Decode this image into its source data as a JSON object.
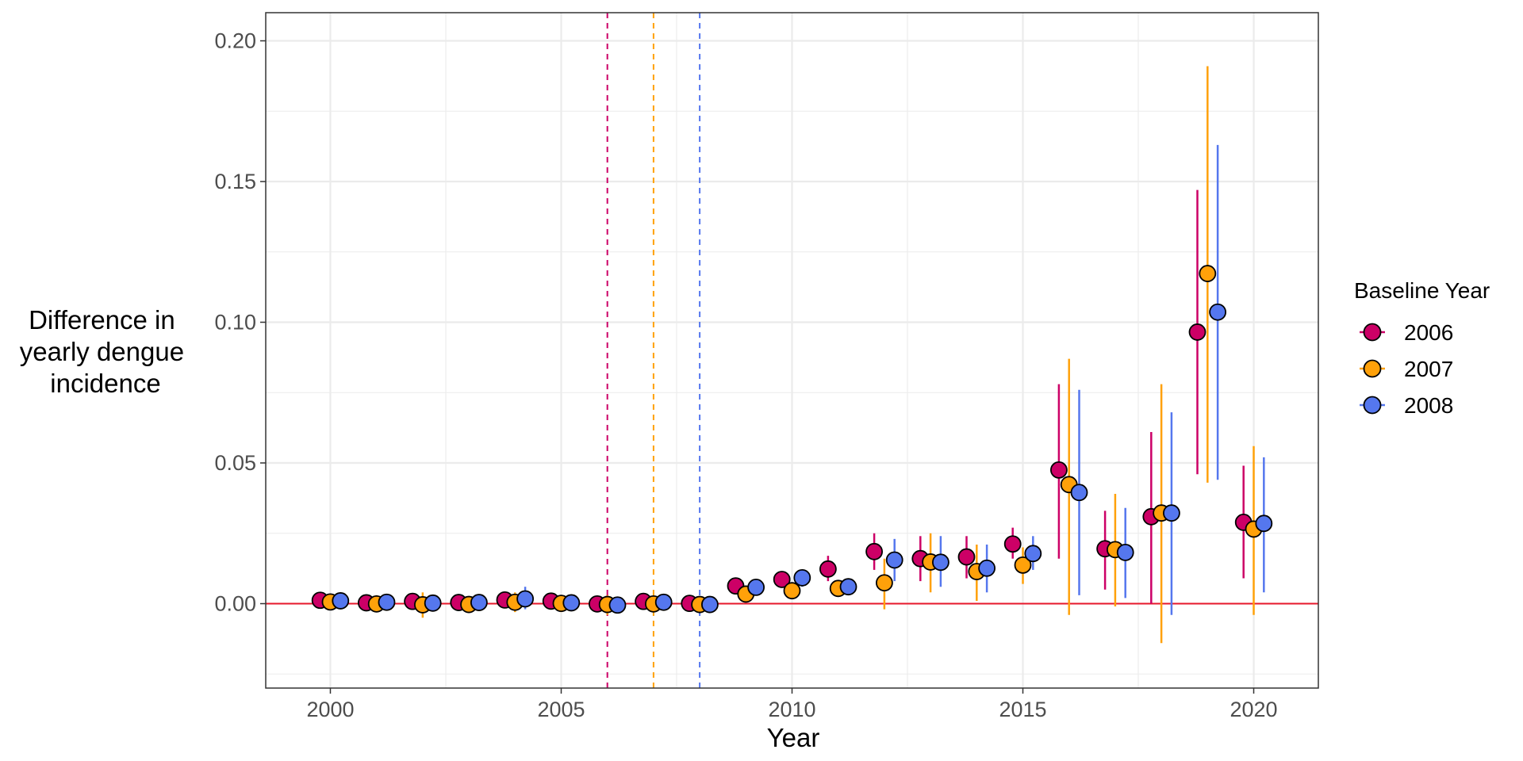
{
  "chart_data": {
    "type": "scatter",
    "title": "",
    "xlabel": "Year",
    "ylabel_lines": [
      "Difference in",
      "yearly dengue",
      "incidence"
    ],
    "xlim": [
      1998.6,
      2021.4
    ],
    "ylim": [
      -0.03,
      0.21
    ],
    "xticks": [
      2000,
      2005,
      2010,
      2015,
      2020
    ],
    "xtick_labels": [
      "2000",
      "2005",
      "2010",
      "2015",
      "2020"
    ],
    "yticks": [
      0.0,
      0.05,
      0.1,
      0.15,
      0.2
    ],
    "ytick_labels": [
      "0.00",
      "0.05",
      "0.10",
      "0.15",
      "0.20"
    ],
    "grid": true,
    "reference_line": {
      "y": 0,
      "color": "#e8192c"
    },
    "legend": {
      "title": "Baseline Year",
      "placement": "right"
    },
    "series": [
      {
        "name": "2006",
        "color": "#cc0066",
        "baseline_line_x": 2006,
        "x": [
          2000,
          2001,
          2002,
          2003,
          2004,
          2005,
          2006,
          2007,
          2008,
          2009,
          2010,
          2011,
          2012,
          2013,
          2014,
          2015,
          2016,
          2017,
          2018,
          2019,
          2020
        ],
        "y": [
          0.0012,
          0.0003,
          0.0008,
          0.0004,
          0.0013,
          0.0009,
          -0.0001,
          0.0008,
          0.0001,
          0.0063,
          0.0086,
          0.0123,
          0.0185,
          0.016,
          0.0166,
          0.0212,
          0.0475,
          0.0195,
          0.0309,
          0.0965,
          0.0289
        ],
        "lower": [
          0.0,
          -0.0008,
          -0.001,
          -0.0008,
          -0.001,
          -0.001,
          -0.001,
          -0.0003,
          -0.0008,
          0.004,
          0.006,
          0.008,
          0.012,
          0.008,
          0.009,
          0.016,
          0.016,
          0.005,
          0.0,
          0.046,
          0.009
        ],
        "upper": [
          0.0025,
          0.0015,
          0.0025,
          0.0016,
          0.0033,
          0.0025,
          0.001,
          0.002,
          0.0012,
          0.009,
          0.011,
          0.017,
          0.025,
          0.024,
          0.024,
          0.027,
          0.078,
          0.033,
          0.061,
          0.147,
          0.049
        ]
      },
      {
        "name": "2007",
        "color": "#ffa10a",
        "baseline_line_x": 2007,
        "x": [
          2000,
          2001,
          2002,
          2003,
          2004,
          2005,
          2006,
          2007,
          2008,
          2009,
          2010,
          2011,
          2012,
          2013,
          2014,
          2015,
          2016,
          2017,
          2018,
          2019,
          2020
        ],
        "y": [
          0.0006,
          -0.0001,
          -0.0004,
          -0.0003,
          0.0005,
          0.0001,
          -0.0003,
          -0.0001,
          -0.0003,
          0.0034,
          0.0046,
          0.0054,
          0.0074,
          0.0148,
          0.0114,
          0.0137,
          0.0423,
          0.0192,
          0.0322,
          0.1173,
          0.0265
        ],
        "lower": [
          -0.002,
          -0.003,
          -0.005,
          -0.003,
          -0.003,
          -0.003,
          -0.004,
          -0.002,
          -0.002,
          0.001,
          0.002,
          0.003,
          -0.002,
          0.004,
          0.001,
          0.007,
          -0.004,
          -0.001,
          -0.014,
          0.043,
          -0.004
        ],
        "upper": [
          0.003,
          0.003,
          0.004,
          0.002,
          0.004,
          0.003,
          0.003,
          0.002,
          0.002,
          0.006,
          0.007,
          0.008,
          0.016,
          0.025,
          0.021,
          0.02,
          0.087,
          0.039,
          0.078,
          0.191,
          0.056
        ]
      },
      {
        "name": "2008",
        "color": "#5577ee",
        "baseline_line_x": 2008,
        "x": [
          2000,
          2001,
          2002,
          2003,
          2004,
          2005,
          2006,
          2007,
          2008,
          2009,
          2010,
          2011,
          2012,
          2013,
          2014,
          2015,
          2016,
          2017,
          2018,
          2019,
          2020
        ],
        "y": [
          0.001,
          0.0005,
          0.0002,
          0.0004,
          0.0017,
          0.0003,
          -0.0005,
          0.0005,
          -0.0003,
          0.0058,
          0.0092,
          0.006,
          0.0155,
          0.0147,
          0.0126,
          0.0178,
          0.0395,
          0.0182,
          0.0322,
          0.1036,
          0.0285
        ],
        "lower": [
          -0.001,
          -0.001,
          -0.001,
          -0.001,
          -0.002,
          -0.002,
          -0.002,
          -0.001,
          -0.002,
          0.003,
          0.006,
          0.004,
          0.008,
          0.006,
          0.004,
          0.012,
          0.003,
          0.002,
          -0.004,
          0.044,
          0.004
        ],
        "upper": [
          0.003,
          0.002,
          0.002,
          0.002,
          0.006,
          0.002,
          0.001,
          0.002,
          0.001,
          0.008,
          0.012,
          0.008,
          0.023,
          0.024,
          0.021,
          0.024,
          0.076,
          0.034,
          0.068,
          0.163,
          0.052
        ]
      }
    ]
  }
}
